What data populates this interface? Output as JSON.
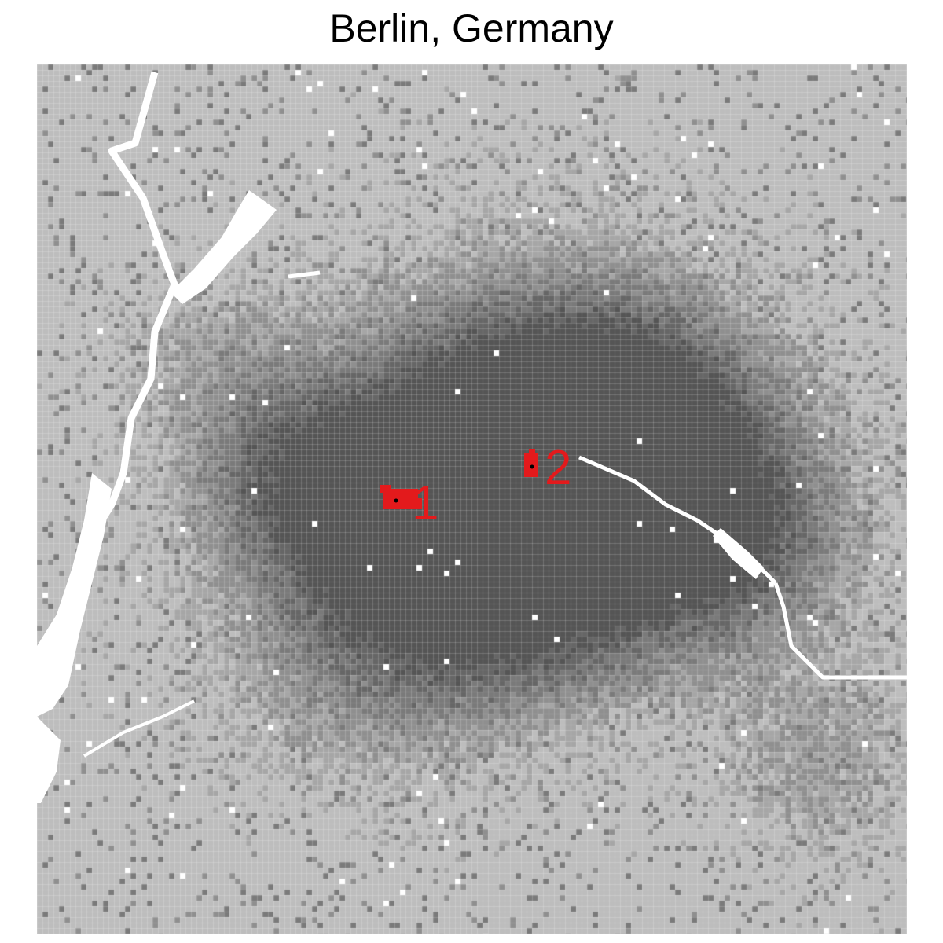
{
  "title": "Berlin, Germany",
  "map": {
    "background_color": "#bdbdbd",
    "density_colors": [
      "#bdbdbd",
      "#a6a6a6",
      "#8f8f8f",
      "#7a7a7a",
      "#666666",
      "#555555"
    ],
    "water_color": "#ffffff",
    "highlight_color": "#e31a1c",
    "centers": [
      {
        "label": "1"
      },
      {
        "label": "2"
      }
    ]
  }
}
